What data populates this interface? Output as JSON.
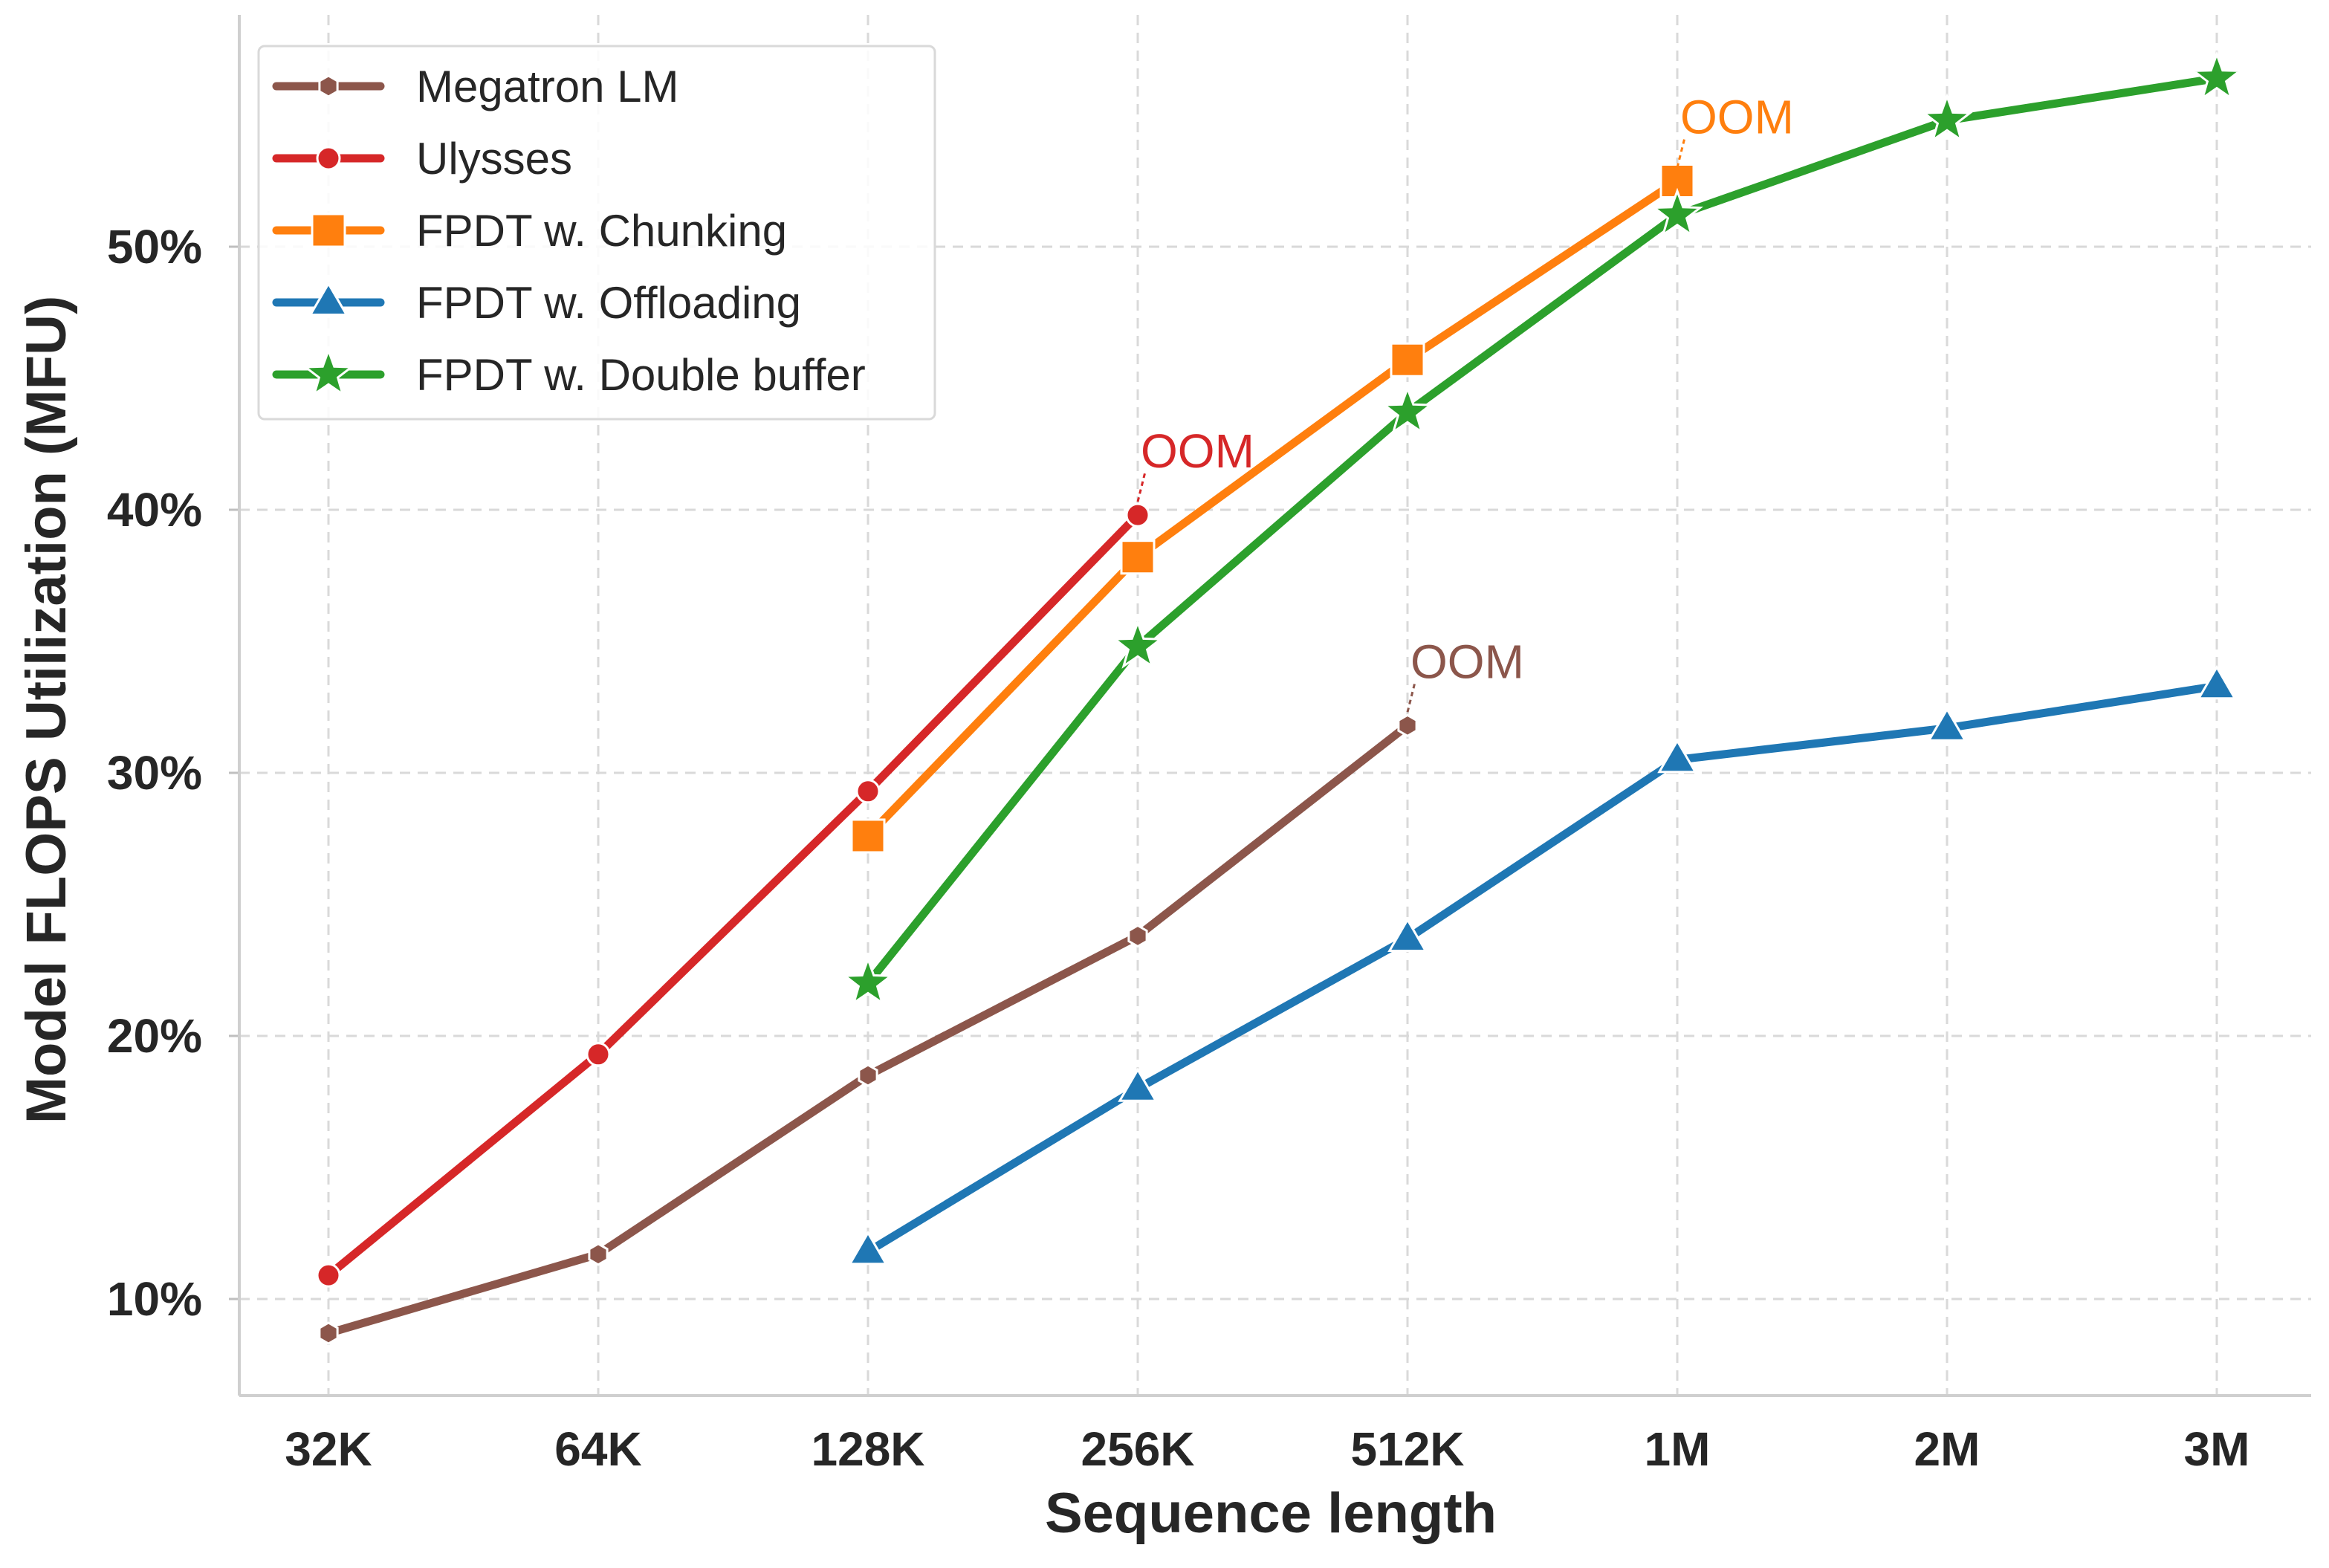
{
  "chart_data": {
    "type": "line",
    "xlabel": "Sequence length",
    "ylabel": "Model FLOPS Utilization (MFU)",
    "categories": [
      "32K",
      "64K",
      "128K",
      "256K",
      "512K",
      "1M",
      "2M",
      "3M"
    ],
    "yticks": [
      10,
      20,
      30,
      40,
      50
    ],
    "ytick_suffix": "%",
    "ylim": [
      6.4,
      56.5
    ],
    "grid": true,
    "legend_position": "top-left",
    "series": [
      {
        "name": "Megatron LM",
        "color": "#8c564b",
        "marker": "hexagon",
        "values": [
          8.7,
          11.7,
          18.5,
          23.8,
          31.8,
          null,
          null,
          null
        ],
        "annotation": {
          "text": "OOM",
          "index": 4
        }
      },
      {
        "name": "Ulysses",
        "color": "#d62728",
        "marker": "circle",
        "values": [
          10.9,
          19.3,
          29.3,
          39.8,
          null,
          null,
          null,
          null
        ],
        "annotation": {
          "text": "OOM",
          "index": 3
        }
      },
      {
        "name": "FPDT w. Chunking",
        "color": "#ff7f0e",
        "marker": "square",
        "values": [
          null,
          null,
          27.6,
          38.2,
          45.7,
          52.5,
          null,
          null
        ],
        "annotation": {
          "text": "OOM",
          "index": 5
        }
      },
      {
        "name": "FPDT w. Offloading",
        "color": "#1f77b4",
        "marker": "triangle",
        "values": [
          null,
          null,
          11.8,
          18.0,
          23.7,
          30.5,
          31.7,
          33.3
        ],
        "annotation": null
      },
      {
        "name": "FPDT w. Double buffer",
        "color": "#2ca02c",
        "marker": "star",
        "values": [
          null,
          null,
          22.0,
          34.8,
          43.7,
          51.2,
          54.8,
          56.4
        ],
        "annotation": null
      }
    ]
  }
}
